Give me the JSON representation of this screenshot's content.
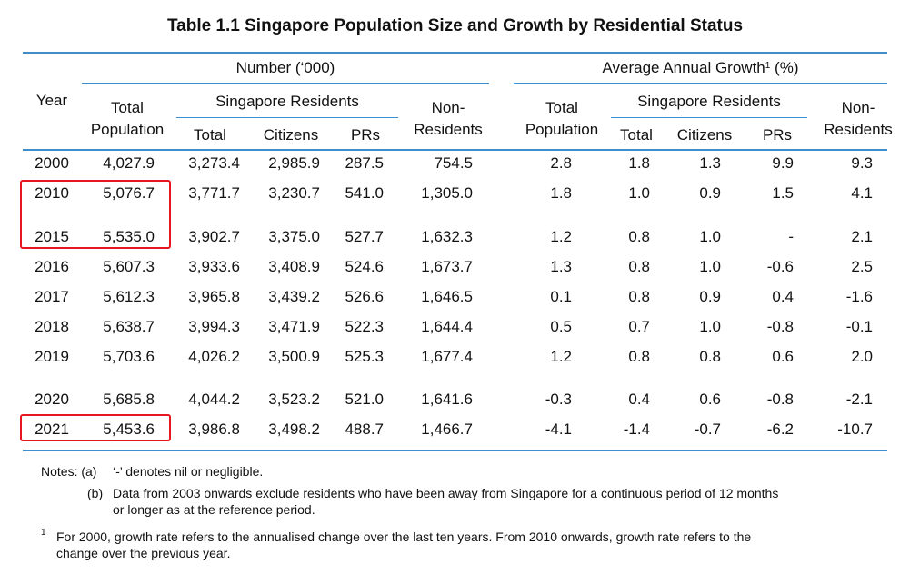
{
  "title": "Table 1.1  Singapore Population Size and Growth by Residential Status",
  "headers": {
    "year": "Year",
    "number_group": "Number (‘000)",
    "growth_group": "Average Annual Growth",
    "growth_group_sup": "1",
    "growth_group_unit": "(%)",
    "total_line1": "Total",
    "total_line2": "Population",
    "sg_residents": "Singapore Residents",
    "total": "Total",
    "citizens": "Citizens",
    "prs": "PRs",
    "non_line1": "Non-",
    "non_line2": "Residents"
  },
  "rows": [
    [
      "2000",
      "4,027.9",
      "3,273.4",
      "2,985.9",
      "287.5",
      "754.5",
      "2.8",
      "1.8",
      "1.3",
      "9.9",
      "9.3"
    ],
    [
      "2010",
      "5,076.7",
      "3,771.7",
      "3,230.7",
      "541.0",
      "1,305.0",
      "1.8",
      "1.0",
      "0.9",
      "1.5",
      "4.1"
    ],
    [
      "2015",
      "5,535.0",
      "3,902.7",
      "3,375.0",
      "527.7",
      "1,632.3",
      "1.2",
      "0.8",
      "1.0",
      "-",
      "2.1"
    ],
    [
      "2016",
      "5,607.3",
      "3,933.6",
      "3,408.9",
      "524.6",
      "1,673.7",
      "1.3",
      "0.8",
      "1.0",
      "-0.6",
      "2.5"
    ],
    [
      "2017",
      "5,612.3",
      "3,965.8",
      "3,439.2",
      "526.6",
      "1,646.5",
      "0.1",
      "0.8",
      "0.9",
      "0.4",
      "-1.6"
    ],
    [
      "2018",
      "5,638.7",
      "3,994.3",
      "3,471.9",
      "522.3",
      "1,644.4",
      "0.5",
      "0.7",
      "1.0",
      "-0.8",
      "-0.1"
    ],
    [
      "2019",
      "5,703.6",
      "4,026.2",
      "3,500.9",
      "525.3",
      "1,677.4",
      "1.2",
      "0.8",
      "0.8",
      "0.6",
      "2.0"
    ],
    [
      "2020",
      "5,685.8",
      "4,044.2",
      "3,523.2",
      "521.0",
      "1,641.6",
      "-0.3",
      "0.4",
      "0.6",
      "-0.8",
      "-2.1"
    ],
    [
      "2021",
      "5,453.6",
      "3,986.8",
      "3,498.2",
      "488.7",
      "1,466.7",
      "-4.1",
      "-1.4",
      "-0.7",
      "-6.2",
      "-10.7"
    ]
  ],
  "notes": {
    "a_prefix": "Notes: (a)",
    "a_text": "‘-’ denotes nil or negligible.",
    "b_prefix": "(b)",
    "b_line1": "Data from 2003 onwards exclude residents who have been away from Singapore for a continuous period of 12 months",
    "b_line2": "or longer as at the reference period.",
    "fn_mark": "1",
    "fn_line1": "For 2000, growth rate refers to the annualised change over the last ten years. From 2010 onwards, growth rate refers to the",
    "fn_line2": "change over the previous year."
  },
  "highlight_color": "#e8171f",
  "rule_color": "#3d8fcf"
}
